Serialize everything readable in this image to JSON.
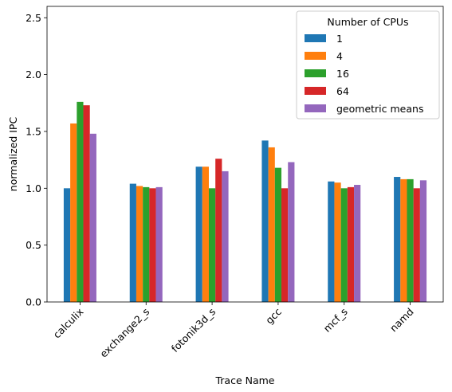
{
  "chart_data": {
    "type": "bar",
    "xlabel": "Trace Name",
    "ylabel": "normalized IPC",
    "ylim": [
      0,
      2.6
    ],
    "yticks": [
      0.0,
      0.5,
      1.0,
      1.5,
      2.0,
      2.5
    ],
    "ytick_labels": [
      "0.0",
      "0.5",
      "1.0",
      "1.5",
      "2.0",
      "2.5"
    ],
    "categories": [
      "calculix",
      "exchange2_s",
      "fotonik3d_s",
      "gcc",
      "mcf_s",
      "namd"
    ],
    "legend": {
      "title": "Number of CPUs",
      "placement": "top-right"
    },
    "grid": false,
    "series": [
      {
        "name": "1",
        "color": "#1f77b4",
        "values": [
          1.0,
          1.04,
          1.19,
          1.42,
          1.06,
          1.1
        ]
      },
      {
        "name": "4",
        "color": "#ff7f0e",
        "values": [
          1.57,
          1.02,
          1.19,
          1.36,
          1.05,
          1.08
        ]
      },
      {
        "name": "16",
        "color": "#2ca02c",
        "values": [
          1.76,
          1.01,
          1.0,
          1.18,
          1.0,
          1.08
        ]
      },
      {
        "name": "64",
        "color": "#d62728",
        "values": [
          1.73,
          1.0,
          1.26,
          1.0,
          1.01,
          1.0
        ]
      },
      {
        "name": "geometric means",
        "color": "#9467bd",
        "values": [
          1.48,
          1.01,
          1.15,
          1.23,
          1.03,
          1.07
        ]
      }
    ]
  }
}
